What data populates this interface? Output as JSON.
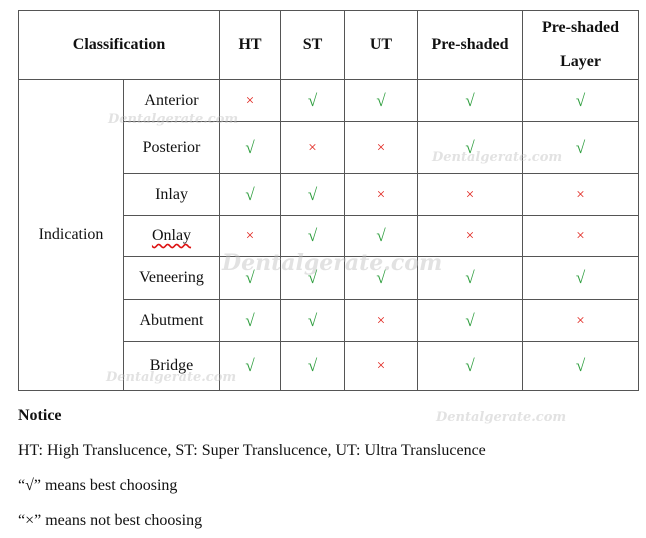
{
  "table": {
    "header": {
      "classification": "Classification",
      "columns": [
        "HT",
        "ST",
        "UT",
        "Pre-shaded",
        "Pre-shaded Layer"
      ]
    },
    "group_label": "Indication",
    "rows": [
      {
        "label": "Anterior",
        "marks": [
          "×",
          "√",
          "√",
          "√",
          "√"
        ]
      },
      {
        "label": "Posterior",
        "marks": [
          "√",
          "×",
          "×",
          "√",
          "√"
        ]
      },
      {
        "label": "Inlay",
        "marks": [
          "√",
          "√",
          "×",
          "×",
          "×"
        ]
      },
      {
        "label": "Onlay",
        "marks": [
          "×",
          "√",
          "√",
          "×",
          "×"
        ]
      },
      {
        "label": "Veneering",
        "marks": [
          "√",
          "√",
          "√",
          "√",
          "√"
        ]
      },
      {
        "label": "Abutment",
        "marks": [
          "√",
          "√",
          "×",
          "√",
          "×"
        ]
      },
      {
        "label": "Bridge",
        "marks": [
          "√",
          "√",
          "×",
          "√",
          "√"
        ]
      }
    ]
  },
  "notice": {
    "title": "Notice",
    "lines": [
      "HT: High Translucence, ST: Super Translucence, UT: Ultra Translucence",
      "“√” means best choosing",
      "“×” means not best choosing"
    ]
  },
  "watermark": "Dentalgerate.com",
  "colors": {
    "check": "#2e9e3e",
    "cross": "#e0261f"
  }
}
